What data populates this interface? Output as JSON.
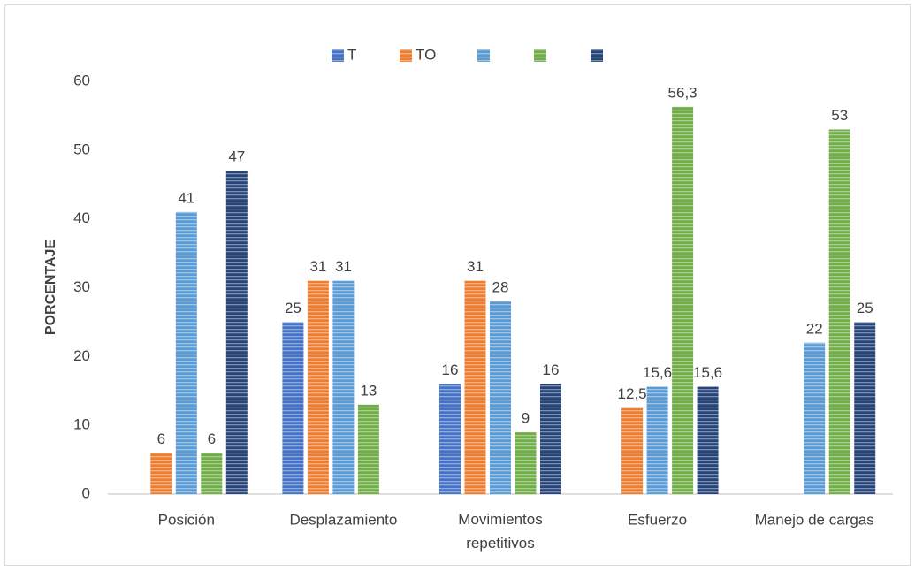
{
  "chart_data": {
    "type": "bar",
    "ylabel": "PORCENTAJE",
    "categories": [
      "Posición",
      "Desplazamiento",
      "Movimientos repetitivos",
      "Esfuerzo",
      "Manejo de cargas"
    ],
    "series": [
      {
        "name": "T",
        "color": "#4472c4",
        "values": [
          null,
          25,
          16,
          null,
          null
        ],
        "value_labels": [
          null,
          "25",
          "16",
          null,
          null
        ]
      },
      {
        "name": "TO",
        "color": "#ed7d31",
        "values": [
          6,
          31,
          31,
          12.5,
          null
        ],
        "value_labels": [
          "6",
          "31",
          "31",
          "12,5",
          null
        ]
      },
      {
        "name": null,
        "color": "#5b9bd5",
        "values": [
          41,
          31,
          28,
          15.6,
          22
        ],
        "value_labels": [
          "41",
          "31",
          "28",
          "15,6",
          "22"
        ]
      },
      {
        "name": null,
        "color": "#70ad47",
        "values": [
          6,
          13,
          9,
          56.3,
          53
        ],
        "value_labels": [
          "6",
          "13",
          "9",
          "56,3",
          "53"
        ]
      },
      {
        "name": null,
        "color": "#264478",
        "values": [
          47,
          null,
          16,
          15.6,
          25
        ],
        "value_labels": [
          "47",
          null,
          "16",
          "15,6",
          "25"
        ]
      }
    ],
    "ylim": [
      0,
      60
    ],
    "yticks": [
      0,
      10,
      20,
      30,
      40,
      50,
      60
    ],
    "grid": false,
    "legend": "top"
  }
}
